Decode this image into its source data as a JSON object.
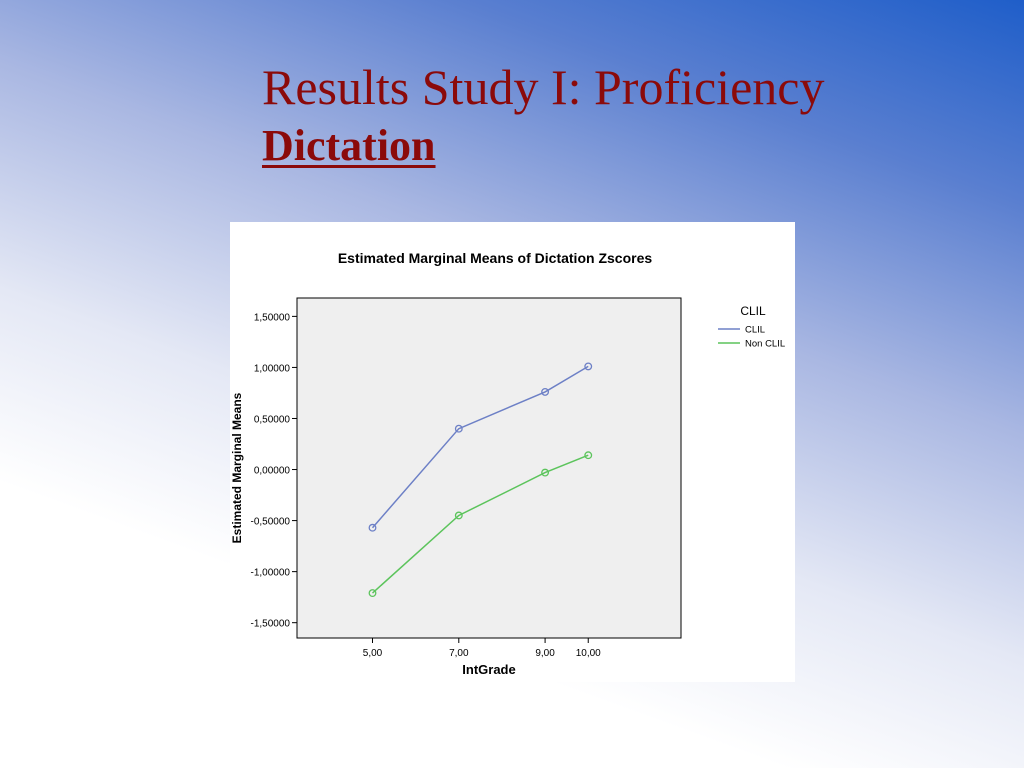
{
  "slide": {
    "title_line1": "Results Study I: Proficiency",
    "title_line2": "Dictation"
  },
  "chart_data": {
    "type": "line",
    "title": "Estimated Marginal Means of Dictation Zscores",
    "xlabel": "IntGrade",
    "ylabel": "Estimated Marginal Means",
    "categories": [
      "5,00",
      "7,00",
      "9,00",
      "10,00"
    ],
    "yticks": [
      "1,50000",
      "1,00000",
      "0,50000",
      "0,00000",
      "-0,50000",
      "-1,00000",
      "-1,50000"
    ],
    "ytick_values": [
      1.5,
      1.0,
      0.5,
      0.0,
      -0.5,
      -1.0,
      -1.5
    ],
    "ylim": [
      -1.65,
      1.68
    ],
    "legend": {
      "title": "CLIL",
      "placement": "right"
    },
    "series": [
      {
        "name": "CLIL",
        "color": "#6d80c6",
        "values": [
          -0.57,
          0.4,
          0.76,
          1.01
        ]
      },
      {
        "name": "Non CLIL",
        "color": "#5cc45c",
        "values": [
          -1.21,
          -0.45,
          -0.03,
          0.14
        ]
      }
    ],
    "plot_background": "#efefef",
    "grid": false
  }
}
